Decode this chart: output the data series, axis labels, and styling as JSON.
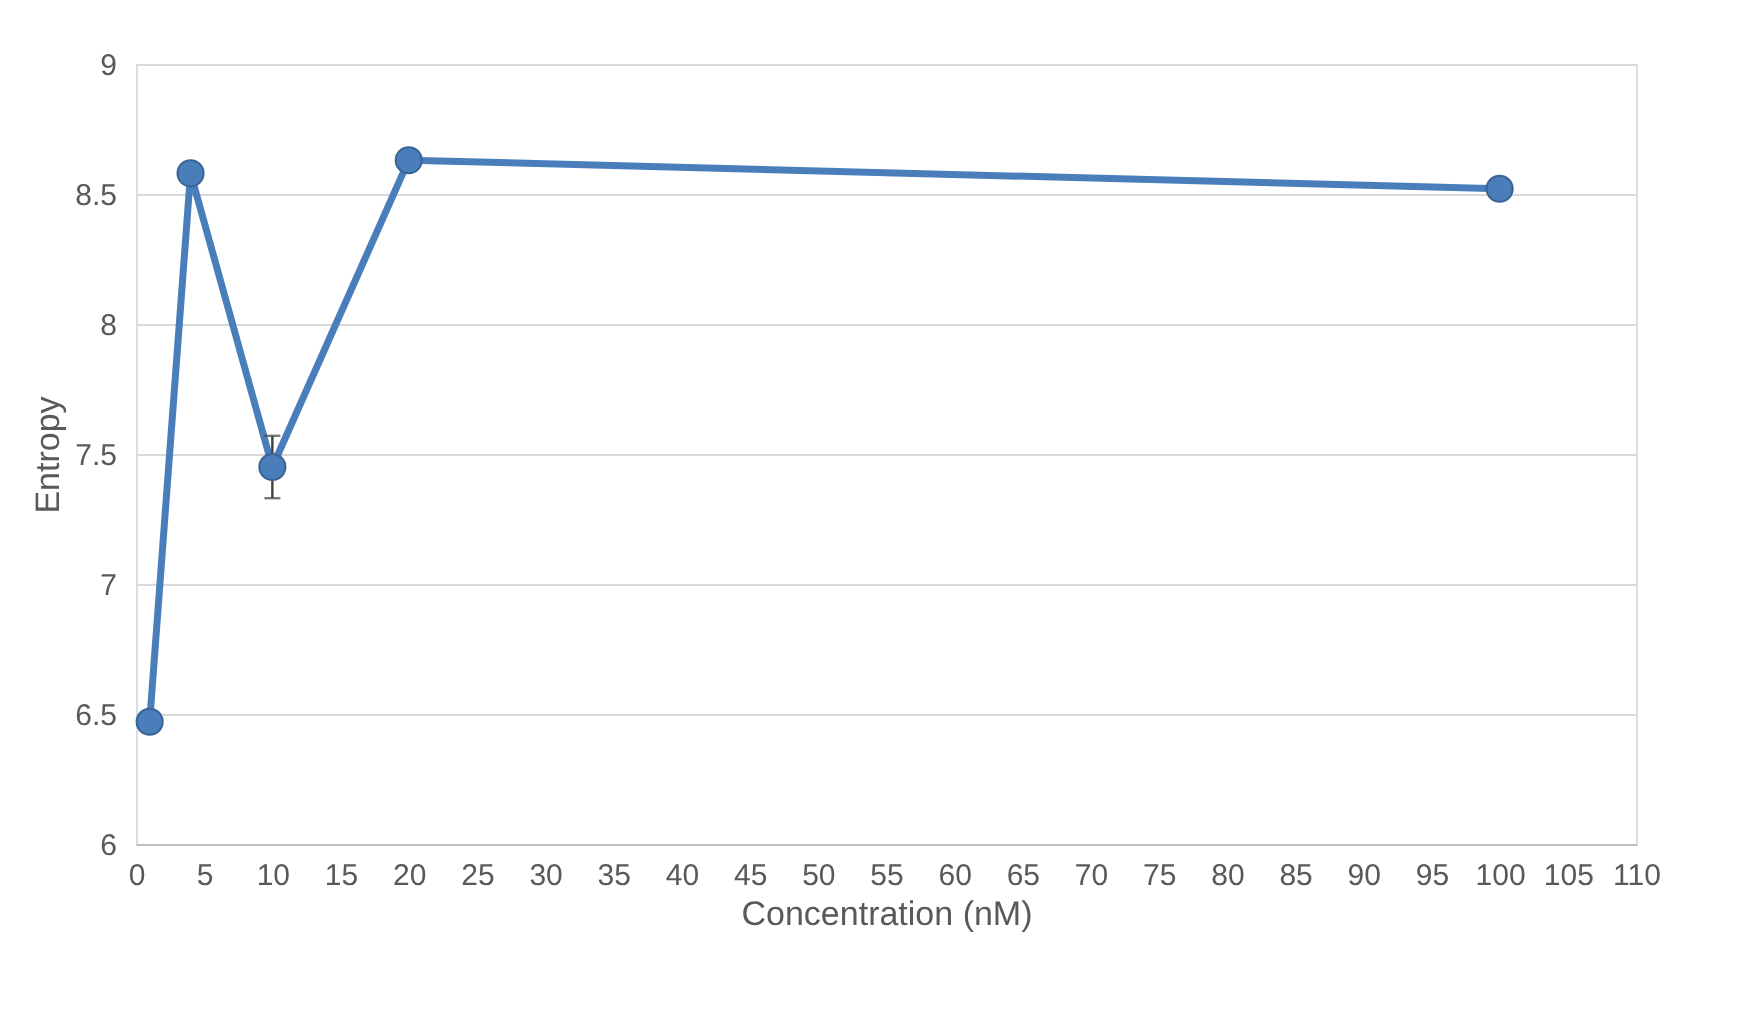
{
  "chart_data": {
    "type": "line",
    "xlabel": "Concentration (nM)",
    "ylabel": "Entropy",
    "x": [
      1,
      4,
      10,
      20,
      100
    ],
    "series": [
      {
        "color": "#4a7ebb",
        "values": [
          6.47,
          8.58,
          7.45,
          8.63,
          8.52
        ],
        "errors": [
          null,
          null,
          0.12,
          null,
          null
        ]
      }
    ],
    "xlim": [
      0,
      110
    ],
    "xticks": [
      0,
      5,
      10,
      15,
      20,
      25,
      30,
      35,
      40,
      45,
      50,
      55,
      60,
      65,
      70,
      75,
      80,
      85,
      90,
      95,
      100,
      105,
      110
    ],
    "ylim": [
      6,
      9
    ],
    "yticks": [
      6,
      6.5,
      7,
      7.5,
      8,
      8.5,
      9
    ],
    "grid": "y",
    "marker": "circle",
    "line_style": "solid"
  }
}
